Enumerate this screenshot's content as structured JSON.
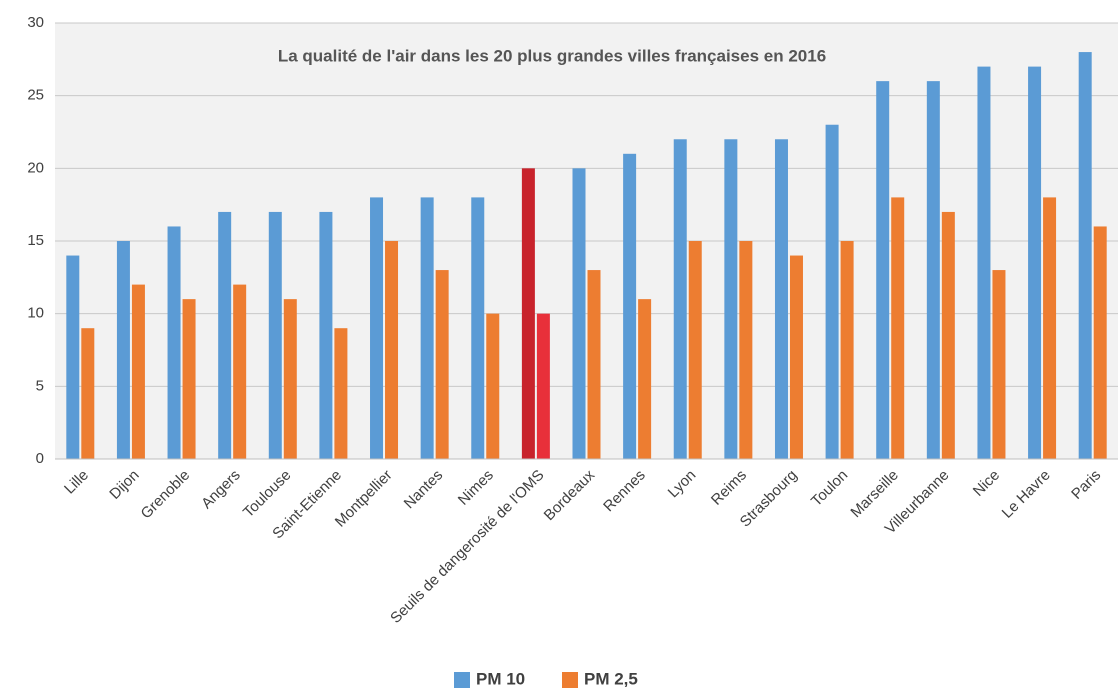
{
  "chart_data": {
    "type": "bar",
    "title": "La qualité de l'air dans les 20 plus grandes villes françaises en 2016",
    "categories": [
      "Lille",
      "Dijon",
      "Grenoble",
      "Angers",
      "Toulouse",
      "Saint-Etienne",
      "Montpellier",
      "Nantes",
      "Nimes",
      "Seuils de dangerosité de l'OMS",
      "Bordeaux",
      "Rennes",
      "Lyon",
      "Reims",
      "Strasbourg",
      "Toulon",
      "Marseille",
      "Villeurbanne",
      "Nice",
      "Le Havre",
      "Paris"
    ],
    "series": [
      {
        "name": "PM 10",
        "color": "#5b9bd5",
        "colors": [
          "#5b9bd5",
          "#5b9bd5",
          "#5b9bd5",
          "#5b9bd5",
          "#5b9bd5",
          "#5b9bd5",
          "#5b9bd5",
          "#5b9bd5",
          "#5b9bd5",
          "#c8232c",
          "#5b9bd5",
          "#5b9bd5",
          "#5b9bd5",
          "#5b9bd5",
          "#5b9bd5",
          "#5b9bd5",
          "#5b9bd5",
          "#5b9bd5",
          "#5b9bd5",
          "#5b9bd5",
          "#5b9bd5"
        ],
        "values": [
          14,
          15,
          16,
          17,
          17,
          17,
          18,
          18,
          18,
          20,
          20,
          21,
          22,
          22,
          22,
          23,
          26,
          26,
          27,
          27,
          28
        ]
      },
      {
        "name": "PM 2,5",
        "color": "#ed7d31",
        "colors": [
          "#ed7d31",
          "#ed7d31",
          "#ed7d31",
          "#ed7d31",
          "#ed7d31",
          "#ed7d31",
          "#ed7d31",
          "#ed7d31",
          "#ed7d31",
          "#e8303a",
          "#ed7d31",
          "#ed7d31",
          "#ed7d31",
          "#ed7d31",
          "#ed7d31",
          "#ed7d31",
          "#ed7d31",
          "#ed7d31",
          "#ed7d31",
          "#ed7d31",
          "#ed7d31"
        ],
        "values": [
          9,
          12,
          11,
          12,
          11,
          9,
          15,
          13,
          10,
          10,
          13,
          11,
          15,
          15,
          14,
          15,
          18,
          17,
          13,
          18,
          16
        ]
      }
    ],
    "ylim": [
      0,
      30
    ],
    "yticks": [
      0,
      5,
      10,
      15,
      20,
      25,
      30
    ],
    "grid": true,
    "legend": "bottom"
  }
}
